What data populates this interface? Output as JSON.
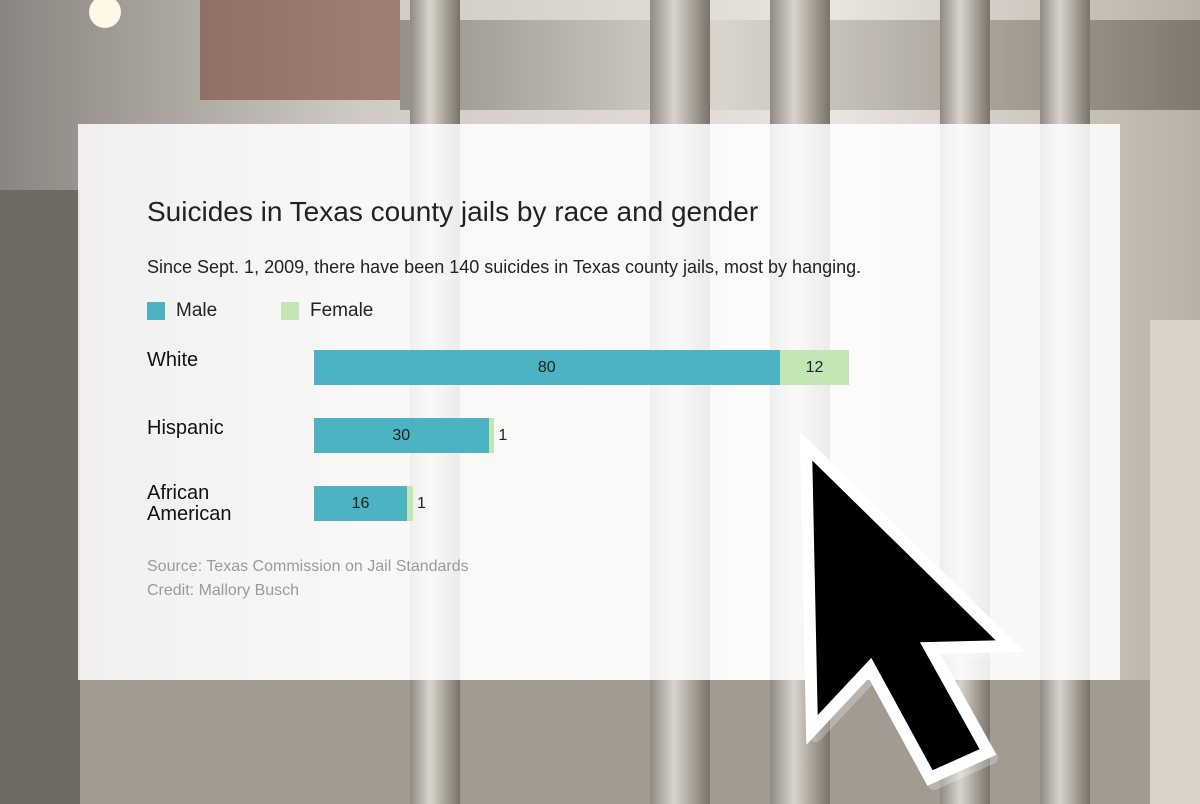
{
  "chart_data": {
    "type": "bar",
    "orientation": "horizontal",
    "stacked": true,
    "title": "Suicides in Texas county jails by race and gender",
    "subtitle": "Since Sept. 1, 2009, there have been 140 suicides in Texas county jails, most by hanging.",
    "categories": [
      "White",
      "Hispanic",
      "African American"
    ],
    "series": [
      {
        "name": "Male",
        "color": "#4bb3c2",
        "values": [
          80,
          30,
          16
        ]
      },
      {
        "name": "Female",
        "color": "#c3e6b4",
        "values": [
          12,
          1,
          1
        ]
      }
    ],
    "source": "Source: Texas Commission on Jail Standards",
    "credit": "Credit: Mallory Busch"
  }
}
